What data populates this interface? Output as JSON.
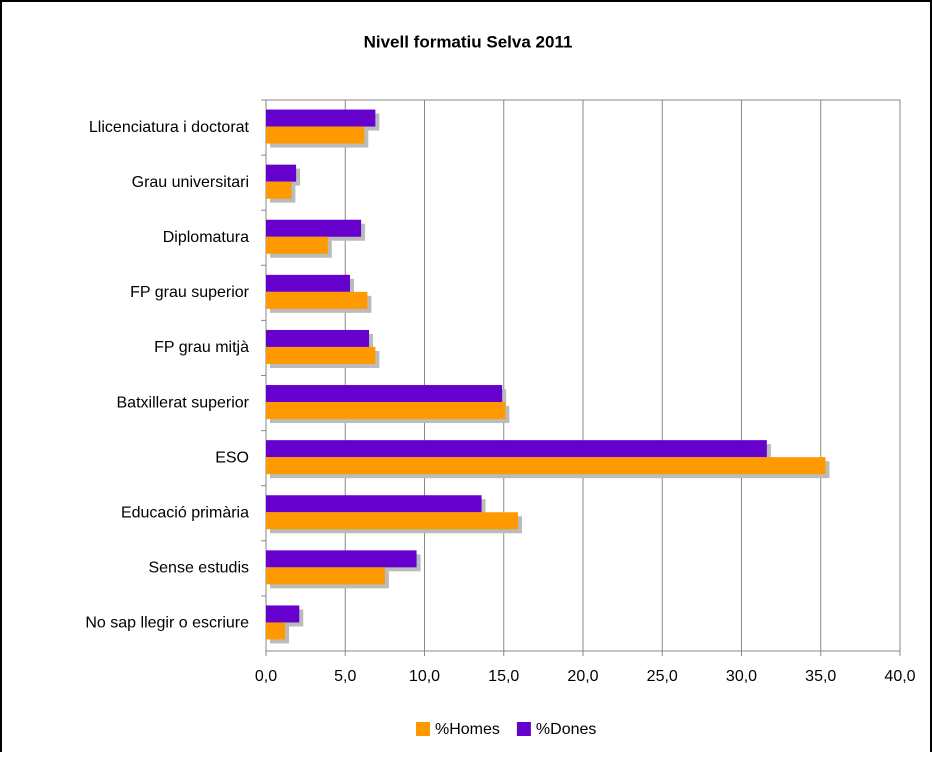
{
  "chart_data": {
    "type": "bar",
    "orientation": "horizontal",
    "title": "Nivell formatiu Selva 2011",
    "categories": [
      "Llicenciatura i doctorat",
      "Grau universitari",
      "Diplomatura",
      "FP grau superior",
      "FP grau mitjà",
      "Batxillerat superior",
      "ESO",
      "Educació primària",
      "Sense estudis",
      "No sap llegir o escriure"
    ],
    "series": [
      {
        "name": "%Homes",
        "color": "#ff9900",
        "values": [
          6.2,
          1.6,
          3.9,
          6.4,
          6.9,
          15.1,
          35.3,
          15.9,
          7.5,
          1.2
        ]
      },
      {
        "name": "%Dones",
        "color": "#6600cc",
        "values": [
          6.9,
          1.9,
          6.0,
          5.3,
          6.5,
          14.9,
          31.6,
          13.6,
          9.5,
          2.1
        ]
      }
    ],
    "xlim": [
      0,
      40
    ],
    "xticks": [
      {
        "value": 0,
        "label": "0,0"
      },
      {
        "value": 5,
        "label": "5,0"
      },
      {
        "value": 10,
        "label": "10,0"
      },
      {
        "value": 15,
        "label": "15,0"
      },
      {
        "value": 20,
        "label": "20,0"
      },
      {
        "value": 25,
        "label": "25,0"
      },
      {
        "value": 30,
        "label": "30,0"
      },
      {
        "value": 35,
        "label": "35,0"
      },
      {
        "value": 40,
        "label": "40,0"
      }
    ],
    "grid": true,
    "legend": "bottom"
  }
}
